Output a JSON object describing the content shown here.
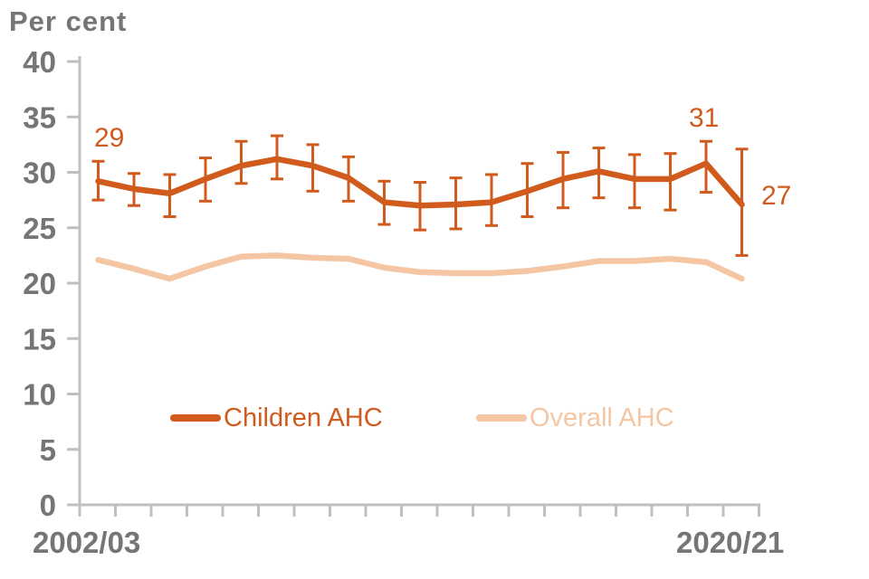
{
  "title": "Per cent",
  "legend": {
    "children_label": "Children AHC",
    "overall_label": "Overall AHC"
  },
  "x_axis": {
    "first_label": "2002/03",
    "last_label": "2020/21"
  },
  "annotations": {
    "start": "29",
    "late_peak": "31",
    "end": "27"
  },
  "colors": {
    "children": "#d15b1d",
    "overall": "#f5c6a4",
    "text_gray": "#757575",
    "axis_gray": "#bfbfbf"
  },
  "chart_data": {
    "type": "line",
    "title": "Per cent",
    "ylabel": "Per cent",
    "xlabel": "",
    "ylim": [
      0,
      40
    ],
    "yticks": [
      0,
      5,
      10,
      15,
      20,
      25,
      30,
      35,
      40
    ],
    "grid": false,
    "legend_position": "bottom-center-inside",
    "x": [
      "2002/03",
      "2003/04",
      "2004/05",
      "2005/06",
      "2006/07",
      "2007/08",
      "2008/09",
      "2009/10",
      "2010/11",
      "2011/12",
      "2012/13",
      "2013/14",
      "2014/15",
      "2015/16",
      "2016/17",
      "2017/18",
      "2018/19",
      "2019/20",
      "2020/21"
    ],
    "x_tick_labels_shown": [
      "2002/03",
      "2020/21"
    ],
    "series": [
      {
        "name": "Children AHC",
        "values": [
          29.2,
          28.5,
          28.1,
          29.4,
          30.6,
          31.2,
          30.6,
          29.5,
          27.3,
          27.0,
          27.1,
          27.3,
          28.3,
          29.4,
          30.1,
          29.4,
          29.4,
          30.8,
          27.1
        ],
        "error_low": [
          27.5,
          27.0,
          26.0,
          27.4,
          29.0,
          29.4,
          28.3,
          27.4,
          25.3,
          24.8,
          24.9,
          25.2,
          26.0,
          26.8,
          27.7,
          26.8,
          26.6,
          28.2,
          22.5
        ],
        "error_high": [
          31.0,
          29.9,
          29.8,
          31.3,
          32.8,
          33.3,
          32.5,
          31.4,
          29.2,
          29.1,
          29.5,
          29.8,
          30.8,
          31.8,
          32.2,
          31.6,
          31.7,
          32.8,
          32.1
        ]
      },
      {
        "name": "Overall AHC",
        "values": [
          22.1,
          21.3,
          20.4,
          21.5,
          22.4,
          22.5,
          22.3,
          22.2,
          21.4,
          21.0,
          20.9,
          20.9,
          21.1,
          21.5,
          22.0,
          22.0,
          22.2,
          21.9,
          20.4
        ]
      }
    ],
    "point_annotations": [
      {
        "text": "29",
        "series": "Children AHC",
        "point_index": 0,
        "position": "above"
      },
      {
        "text": "31",
        "series": "Children AHC",
        "point_index": 17,
        "position": "above"
      },
      {
        "text": "27",
        "series": "Children AHC",
        "point_index": 18,
        "position": "right"
      }
    ]
  }
}
